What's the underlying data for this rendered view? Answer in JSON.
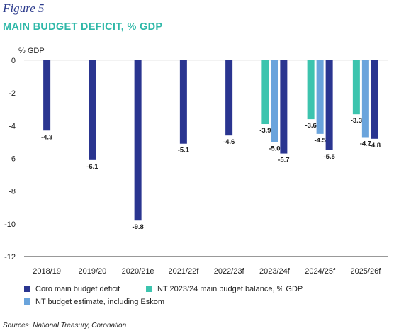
{
  "figure_label": "Figure 5",
  "title": "MAIN BUDGET DEFICIT, % GDP",
  "unit_label": "% GDP",
  "source": "Sources: National Treasury, Coronation",
  "colors": {
    "coro": "#2a3590",
    "nt_balance": "#3cc4ae",
    "nt_eskom": "#6aa4dc"
  },
  "chart_data": {
    "type": "bar",
    "title": "MAIN BUDGET DEFICIT, % GDP",
    "ylabel": "% GDP",
    "xlabel": "",
    "ylim": [
      -12,
      0
    ],
    "yticks": [
      0,
      -2,
      -4,
      -6,
      -8,
      -10,
      -12
    ],
    "ytick_labels": [
      "0",
      "-2",
      "-4",
      "-6",
      "-8",
      "-10",
      "-12"
    ],
    "categories": [
      "2018/19",
      "2019/20",
      "2020/21e",
      "2021/22f",
      "2022/23f",
      "2023/24f",
      "2024/25f",
      "2025/26f"
    ],
    "legend_position": "bottom",
    "grid": false,
    "series": [
      {
        "name": "NT 2023/24 main budget balance, % GDP",
        "color": "#3cc4ae",
        "values": [
          null,
          null,
          null,
          null,
          null,
          -3.9,
          -3.6,
          -3.3
        ],
        "labels": [
          null,
          null,
          null,
          null,
          null,
          "-3.9",
          "-3.6",
          "-3.3"
        ]
      },
      {
        "name": "NT budget estimate, including Eskom",
        "color": "#6aa4dc",
        "values": [
          null,
          null,
          null,
          null,
          null,
          -5.0,
          -4.5,
          -4.7
        ],
        "labels": [
          null,
          null,
          null,
          null,
          null,
          "-5.0",
          "-4.5",
          "-4.7"
        ]
      },
      {
        "name": "Coro main budget deficit",
        "color": "#2a3590",
        "values": [
          -4.3,
          -6.1,
          -9.8,
          -5.1,
          -4.6,
          -5.7,
          -5.5,
          -4.8
        ],
        "labels": [
          "-4.3",
          "-6.1",
          "-9.8",
          "-5.1",
          "-4.6",
          "-5.7",
          "-5.5",
          "-4.8"
        ]
      }
    ]
  },
  "legend": [
    {
      "label": "Coro main budget deficit",
      "color": "#2a3590"
    },
    {
      "label": "NT 2023/24 main budget balance, % GDP",
      "color": "#3cc4ae"
    },
    {
      "label": "NT budget estimate, including Eskom",
      "color": "#6aa4dc"
    }
  ]
}
